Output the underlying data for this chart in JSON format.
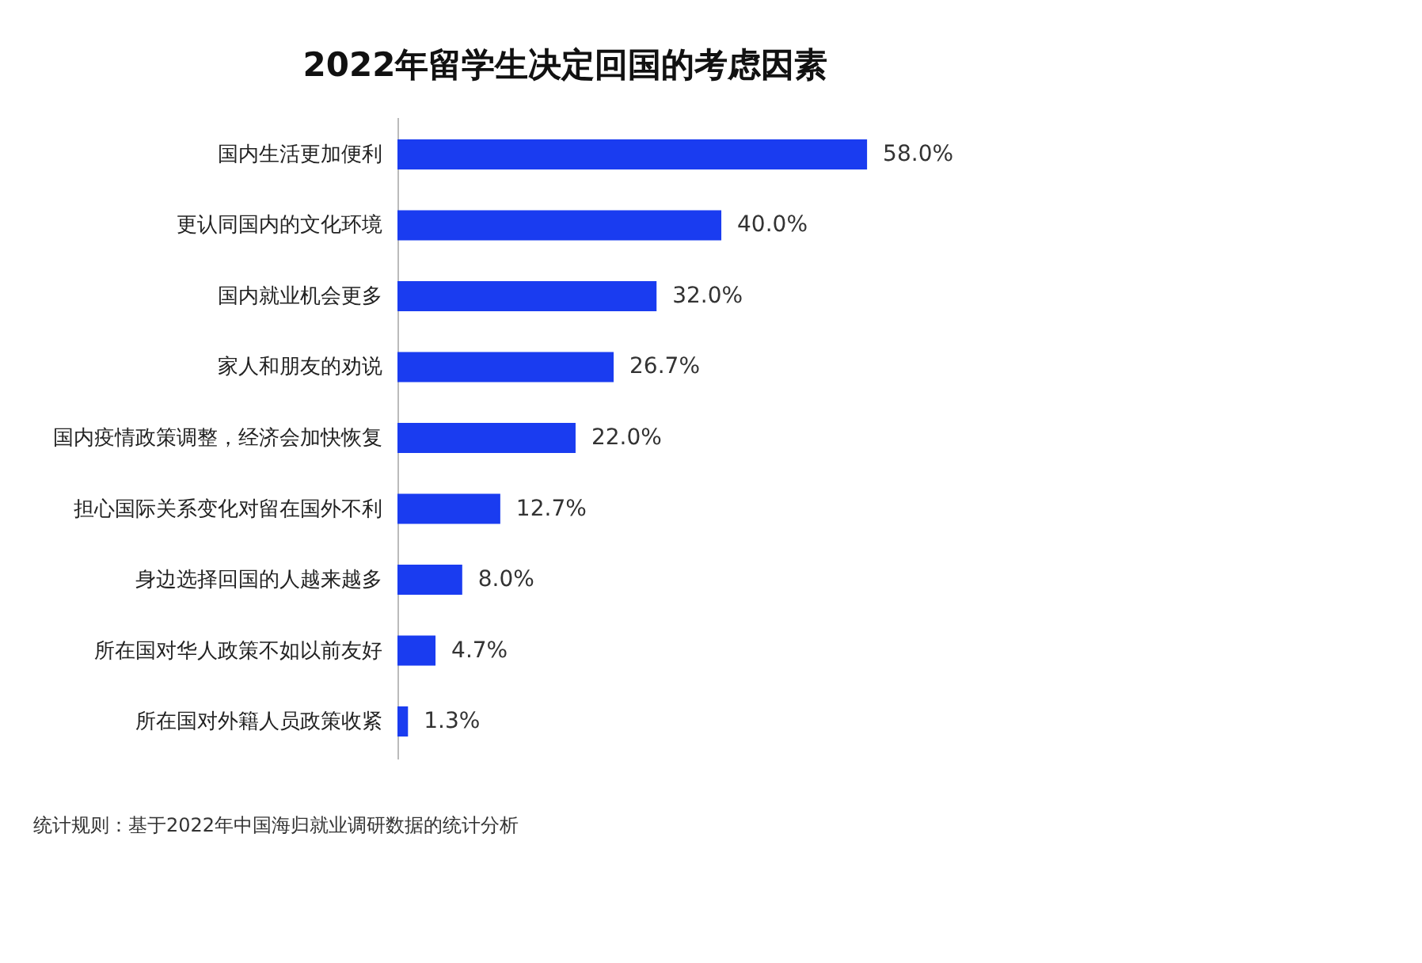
{
  "chart_data": {
    "type": "bar",
    "orientation": "horizontal",
    "title": "2022年留学生决定回国的考虑因素",
    "categories": [
      "国内生活更加便利",
      "更认同国内的文化环境",
      "国内就业机会更多",
      "家人和朋友的劝说",
      "国内疫情政策调整，经济会加快恢复",
      "担心国际关系变化对留在国外不利",
      "身边选择回国的人越来越多",
      "所在国对华人政策不如以前友好",
      "所在国对外籍人员政策收紧"
    ],
    "values": [
      58.0,
      40.0,
      32.0,
      26.7,
      22.0,
      12.7,
      8.0,
      4.7,
      1.3
    ],
    "value_labels": [
      "58.0%",
      "40.0%",
      "32.0%",
      "26.7%",
      "22.0%",
      "12.7%",
      "8.0%",
      "4.7%",
      "1.3%"
    ],
    "color": "#1a3cf0",
    "annotations": [
      "统计规则：基于2022年中国海归就业调研数据的统计分析"
    ],
    "legend": false
  }
}
